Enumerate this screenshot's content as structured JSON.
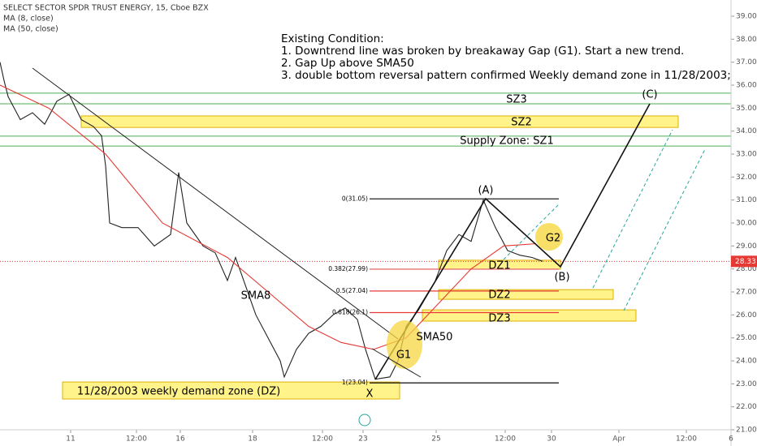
{
  "chart_data": {
    "type": "line",
    "title": "SELECT SECTOR SPDR TRUST ENERGY, 15, Cboe BZX",
    "indicators": [
      "MA (8, close)",
      "MA (50, close)"
    ],
    "xlim": [
      0,
      180
    ],
    "ylim": [
      21,
      39
    ],
    "yticks": [
      {
        "value": 21,
        "label": "21.00"
      },
      {
        "value": 22,
        "label": "22.00"
      },
      {
        "value": 23,
        "label": "23.00"
      },
      {
        "value": 24,
        "label": "24.00"
      },
      {
        "value": 25,
        "label": "25.00"
      },
      {
        "value": 26,
        "label": "26.00"
      },
      {
        "value": 27,
        "label": "27.00"
      },
      {
        "value": 28,
        "label": "28.00"
      },
      {
        "value": 29,
        "label": "29.00"
      },
      {
        "value": 30,
        "label": "30.00"
      },
      {
        "value": 31,
        "label": "31.00"
      },
      {
        "value": 32,
        "label": "32.00"
      },
      {
        "value": 33,
        "label": "33.00"
      },
      {
        "value": 34,
        "label": "34.00"
      },
      {
        "value": 35,
        "label": "35.00"
      },
      {
        "value": 36,
        "label": "36.00"
      },
      {
        "value": 37,
        "label": "37.00"
      },
      {
        "value": 38,
        "label": "38.00"
      },
      {
        "value": 39,
        "label": "39.00"
      }
    ],
    "xticks": [
      {
        "value": 17.4,
        "label": "11"
      },
      {
        "value": 33.6,
        "label": "12:00"
      },
      {
        "value": 44.4,
        "label": "16"
      },
      {
        "value": 62.2,
        "label": "18"
      },
      {
        "value": 79.4,
        "label": "12:00"
      },
      {
        "value": 89.4,
        "label": "23"
      },
      {
        "value": 107.4,
        "label": "25"
      },
      {
        "value": 124.4,
        "label": "12:00"
      },
      {
        "value": 135.8,
        "label": "30"
      },
      {
        "value": 152.4,
        "label": "Apr"
      },
      {
        "value": 169,
        "label": "12:00"
      },
      {
        "value": 180,
        "label": "6"
      }
    ],
    "series": [
      {
        "color": "#222222",
        "x": [
          0,
          1,
          2,
          5,
          8,
          11,
          14,
          17,
          20,
          23,
          25,
          26,
          27,
          30,
          34,
          38,
          42,
          44,
          46,
          50,
          53,
          56,
          58,
          60,
          63,
          66,
          69,
          70,
          73,
          76,
          79,
          82,
          85,
          88,
          90,
          92.4,
          96,
          98,
          100,
          103,
          107,
          110,
          113,
          116,
          119,
          122,
          125,
          128,
          131,
          133.6
        ],
        "values": [
          37,
          36.2,
          35.5,
          34.5,
          34.8,
          34.3,
          35.3,
          35.6,
          34.5,
          34.2,
          33.8,
          32.5,
          30,
          29.8,
          29.8,
          29,
          29.5,
          32.2,
          30,
          29,
          28.7,
          27.5,
          28.5,
          27.5,
          26,
          25,
          24,
          23.3,
          24.5,
          25.2,
          25.5,
          26,
          26.3,
          25.8,
          24.5,
          23.2,
          23.3,
          24,
          25.5,
          26.2,
          27.4,
          28.8,
          29.5,
          29.2,
          31,
          29.8,
          28.8,
          28.6,
          28.5,
          28.33
        ]
      },
      {
        "color": "#e53935",
        "x": [
          0,
          12,
          26,
          40,
          56,
          66,
          76,
          84,
          92,
          100,
          108,
          116,
          124,
          132
        ],
        "values": [
          36,
          35,
          33,
          30,
          28.5,
          27,
          25.5,
          24.8,
          24.5,
          25,
          26.5,
          28,
          29,
          29.1
        ]
      }
    ],
    "last_price": {
      "value": 28.33,
      "label": "28.33",
      "color": "#e53935"
    },
    "zones": [
      {
        "name": "SZ3",
        "range": [
          35.19,
          35.65
        ],
        "x": [
          0,
          180
        ],
        "box": false,
        "color": "#4caf50"
      },
      {
        "name": "SZ2",
        "range": [
          34.16,
          34.66
        ],
        "x": [
          20,
          167
        ],
        "box": true,
        "color": "#fff176"
      },
      {
        "name": "Supply Zone:  SZ1",
        "range": [
          33.35,
          33.78
        ],
        "x": [
          0,
          180
        ],
        "box": false,
        "color": "#4caf50"
      },
      {
        "name": "11/28/2003 weekly demand zone (DZ)",
        "range": [
          22.34,
          23.08
        ],
        "x": [
          15.4,
          98.4
        ],
        "box": true,
        "color": "#fff176"
      },
      {
        "name": "DZ1",
        "range": [
          27.99,
          28.38
        ],
        "x": [
          108,
          138
        ],
        "box": true,
        "color": "#fff176"
      },
      {
        "name": "DZ2",
        "range": [
          26.68,
          27.1
        ],
        "x": [
          108,
          151
        ],
        "box": true,
        "color": "#fff176"
      },
      {
        "name": "DZ3",
        "range": [
          25.73,
          26.22
        ],
        "x": [
          104,
          156.6
        ],
        "box": true,
        "color": "#fff176"
      }
    ],
    "fib_levels": [
      {
        "label": "0(31.05)",
        "value": 31.05,
        "color": "#222222"
      },
      {
        "label": "0.382(27.99)",
        "value": 27.99,
        "color": "#e57373"
      },
      {
        "label": "0.5(27.04)",
        "value": 27.04,
        "color": "#e53935"
      },
      {
        "label": "0.618(26.1)",
        "value": 26.1,
        "color": "#e53935"
      },
      {
        "label": "1(23.04)",
        "value": 23.04,
        "color": "#222222"
      }
    ],
    "fib_x": [
      91,
      137.6
    ],
    "condition": [
      "Existing Condition:",
      "1. Downtrend line was broken by  breakaway Gap (G1). Start a new trend.",
      "2. Gap Up above SMA50",
      "3. double bottom reversal pattern confirmed Weekly demand zone in 11/28/2003;"
    ],
    "labels": [
      "(A)",
      "(B)",
      "(C)",
      "X",
      "G1",
      "G2",
      "SMA8",
      "SMA50"
    ]
  }
}
